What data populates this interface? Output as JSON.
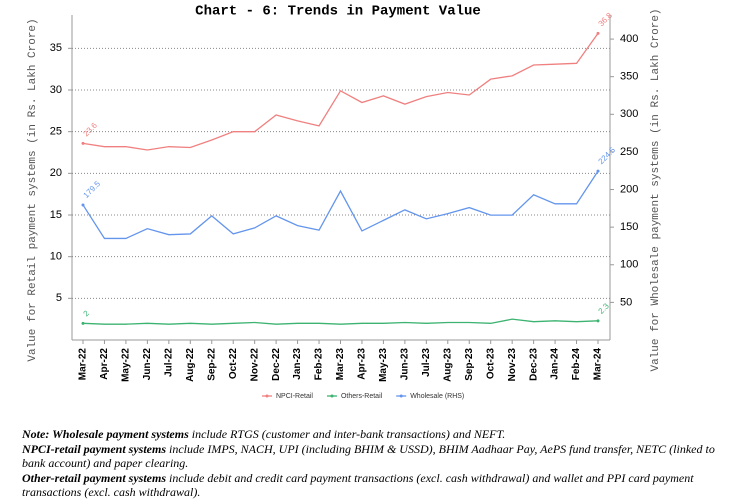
{
  "chart_data": {
    "type": "line",
    "title": "Chart - 6: Trends in Payment Value",
    "ylabel": "Value for Retail payment systems (in Rs. Lakh Crore)",
    "y2label": "Value for Wholesale payment systems (in Rs. Lakh Crore)",
    "categories": [
      "Mar-22",
      "Apr-22",
      "May-22",
      "Jun-22",
      "Jul-22",
      "Aug-22",
      "Sep-22",
      "Oct-22",
      "Nov-22",
      "Dec-22",
      "Jan-23",
      "Feb-23",
      "Mar-23",
      "Apr-23",
      "May-23",
      "Jun-23",
      "Jul-23",
      "Aug-23",
      "Sep-23",
      "Oct-23",
      "Nov-23",
      "Dec-23",
      "Jan-24",
      "Feb-24",
      "Mar-24"
    ],
    "series": [
      {
        "name": "NPCI-Retail",
        "color": "#f08080",
        "values": [
          23.6,
          23.2,
          23.2,
          22.8,
          23.2,
          23.1,
          24.0,
          25.0,
          25.0,
          27.0,
          26.3,
          25.7,
          29.9,
          28.5,
          29.3,
          28.3,
          29.2,
          29.7,
          29.4,
          31.3,
          31.7,
          33.0,
          33.1,
          33.2,
          36.8
        ]
      },
      {
        "name": "Others-Retail",
        "color": "#3cb371",
        "values": [
          2,
          1.9,
          1.9,
          2.0,
          1.9,
          2.0,
          1.9,
          2.0,
          2.1,
          1.9,
          2.0,
          2.0,
          1.9,
          2.0,
          2.0,
          2.1,
          2.0,
          2.1,
          2.1,
          2.0,
          2.5,
          2.2,
          2.3,
          2.2,
          2.3
        ]
      },
      {
        "name": "Wholesale (RHS)",
        "color": "#6495ed",
        "axis": "y2",
        "values": [
          179.5,
          135,
          135,
          148,
          140,
          141,
          165,
          141,
          149,
          165,
          152,
          146,
          198,
          145,
          159,
          173,
          161,
          168,
          176,
          166,
          166,
          193,
          181,
          181,
          224.5
        ]
      }
    ],
    "ylim": [
      0,
      39
    ],
    "yticks": [
      5,
      10,
      15,
      20,
      25,
      30,
      35
    ],
    "y2lim": [
      0,
      432
    ],
    "y2ticks": [
      50,
      100,
      150,
      200,
      250,
      300,
      350,
      400
    ],
    "grid": true,
    "legend": "bottom"
  },
  "notes": [
    {
      "bold": "Note: Wholesale payment systems",
      "text": " include RTGS (customer and inter-bank transactions) and NEFT."
    },
    {
      "bold": "NPCI-retail payment systems",
      "text": " include IMPS, NACH, UPI (including BHIM & USSD), BHIM Aadhaar Pay, AePS fund transfer, NETC (linked to bank account) and paper clearing."
    },
    {
      "bold": "Other-retail payment systems",
      "text": " include debit and credit card payment transactions (excl. cash withdrawal) and wallet and PPI card payment transactions (excl. cash withdrawal)."
    }
  ]
}
